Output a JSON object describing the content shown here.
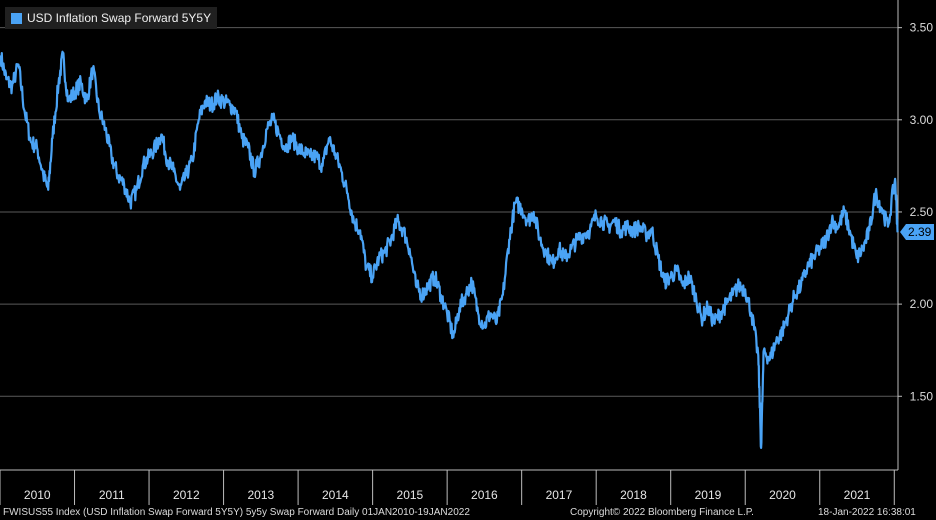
{
  "legend": {
    "label": "USD Inflation Swap Forward 5Y5Y",
    "color": "#4aa3f5"
  },
  "last_value_label": "2.39",
  "footer": {
    "left": "FWISUS55 Index (USD Inflation Swap Forward 5Y5Y) 5y5y Swap Forward  Daily 01JAN2010-19JAN2022",
    "center": "Copyright© 2022 Bloomberg Finance L.P.",
    "right": "18-Jan-2022 16:38:01"
  },
  "chart_data": {
    "type": "line",
    "title": "",
    "xlabel": "",
    "ylabel": "",
    "ylim": [
      1.1,
      3.65
    ],
    "xlim": [
      2010.0,
      2022.05
    ],
    "y_ticks": [
      1.5,
      2.0,
      2.5,
      3.0,
      3.5
    ],
    "y_tick_labels": [
      "1.50",
      "2.00",
      "2.50",
      "3.00",
      "3.50"
    ],
    "x_tick_labels": [
      "2010",
      "2011",
      "2012",
      "2013",
      "2014",
      "2015",
      "2016",
      "2017",
      "2018",
      "2019",
      "2020",
      "2021"
    ],
    "grid": "horizontal",
    "legend_position": "top-left",
    "series": [
      {
        "name": "USD Inflation Swap Forward 5Y5Y",
        "color": "#4aa3f5",
        "points": [
          [
            "2010-01-04",
            3.35
          ],
          [
            "2010-02-01",
            3.22
          ],
          [
            "2010-03-01",
            3.18
          ],
          [
            "2010-04-01",
            3.3
          ],
          [
            "2010-05-01",
            3.05
          ],
          [
            "2010-06-01",
            2.88
          ],
          [
            "2010-07-01",
            2.85
          ],
          [
            "2010-08-01",
            2.7
          ],
          [
            "2010-08-25",
            2.62
          ],
          [
            "2010-09-15",
            2.9
          ],
          [
            "2010-10-15",
            3.2
          ],
          [
            "2010-11-05",
            3.35
          ],
          [
            "2010-12-01",
            3.1
          ],
          [
            "2011-01-01",
            3.15
          ],
          [
            "2011-02-01",
            3.2
          ],
          [
            "2011-03-01",
            3.1
          ],
          [
            "2011-04-01",
            3.28
          ],
          [
            "2011-05-01",
            3.05
          ],
          [
            "2011-06-01",
            2.95
          ],
          [
            "2011-07-01",
            2.8
          ],
          [
            "2011-08-01",
            2.7
          ],
          [
            "2011-09-01",
            2.65
          ],
          [
            "2011-10-01",
            2.55
          ],
          [
            "2011-11-01",
            2.62
          ],
          [
            "2011-12-01",
            2.75
          ],
          [
            "2012-01-01",
            2.8
          ],
          [
            "2012-02-01",
            2.85
          ],
          [
            "2012-03-01",
            2.92
          ],
          [
            "2012-04-01",
            2.78
          ],
          [
            "2012-05-01",
            2.72
          ],
          [
            "2012-06-01",
            2.62
          ],
          [
            "2012-07-01",
            2.7
          ],
          [
            "2012-08-01",
            2.78
          ],
          [
            "2012-09-01",
            3.0
          ],
          [
            "2012-10-01",
            3.1
          ],
          [
            "2012-11-01",
            3.08
          ],
          [
            "2012-12-01",
            3.12
          ],
          [
            "2013-01-01",
            3.1
          ],
          [
            "2013-02-01",
            3.08
          ],
          [
            "2013-03-01",
            3.05
          ],
          [
            "2013-04-01",
            2.9
          ],
          [
            "2013-05-01",
            2.85
          ],
          [
            "2013-06-01",
            2.72
          ],
          [
            "2013-07-01",
            2.8
          ],
          [
            "2013-08-01",
            2.95
          ],
          [
            "2013-09-01",
            3.0
          ],
          [
            "2013-10-01",
            2.92
          ],
          [
            "2013-11-01",
            2.85
          ],
          [
            "2013-12-01",
            2.9
          ],
          [
            "2014-01-01",
            2.85
          ],
          [
            "2014-02-01",
            2.82
          ],
          [
            "2014-03-01",
            2.8
          ],
          [
            "2014-04-01",
            2.8
          ],
          [
            "2014-05-01",
            2.75
          ],
          [
            "2014-06-01",
            2.9
          ],
          [
            "2014-07-01",
            2.82
          ],
          [
            "2014-08-01",
            2.72
          ],
          [
            "2014-09-01",
            2.6
          ],
          [
            "2014-10-01",
            2.45
          ],
          [
            "2014-11-01",
            2.4
          ],
          [
            "2014-12-01",
            2.2
          ],
          [
            "2015-01-01",
            2.15
          ],
          [
            "2015-02-01",
            2.25
          ],
          [
            "2015-03-01",
            2.28
          ],
          [
            "2015-04-01",
            2.35
          ],
          [
            "2015-05-01",
            2.45
          ],
          [
            "2015-06-01",
            2.4
          ],
          [
            "2015-07-01",
            2.3
          ],
          [
            "2015-08-01",
            2.1
          ],
          [
            "2015-09-01",
            2.05
          ],
          [
            "2015-10-01",
            2.1
          ],
          [
            "2015-11-01",
            2.15
          ],
          [
            "2015-12-01",
            2.05
          ],
          [
            "2016-01-01",
            1.95
          ],
          [
            "2016-02-01",
            1.82
          ],
          [
            "2016-03-01",
            1.98
          ],
          [
            "2016-04-01",
            2.05
          ],
          [
            "2016-05-01",
            2.12
          ],
          [
            "2016-06-01",
            1.95
          ],
          [
            "2016-07-01",
            1.88
          ],
          [
            "2016-08-01",
            1.95
          ],
          [
            "2016-09-01",
            1.9
          ],
          [
            "2016-10-01",
            2.05
          ],
          [
            "2016-11-01",
            2.35
          ],
          [
            "2016-12-01",
            2.55
          ],
          [
            "2017-01-01",
            2.52
          ],
          [
            "2017-02-01",
            2.45
          ],
          [
            "2017-03-01",
            2.5
          ],
          [
            "2017-04-01",
            2.35
          ],
          [
            "2017-05-01",
            2.28
          ],
          [
            "2017-06-01",
            2.22
          ],
          [
            "2017-07-01",
            2.3
          ],
          [
            "2017-08-01",
            2.25
          ],
          [
            "2017-09-01",
            2.3
          ],
          [
            "2017-10-01",
            2.35
          ],
          [
            "2017-11-01",
            2.38
          ],
          [
            "2017-12-01",
            2.4
          ],
          [
            "2018-01-01",
            2.48
          ],
          [
            "2018-02-01",
            2.45
          ],
          [
            "2018-03-01",
            2.42
          ],
          [
            "2018-04-01",
            2.45
          ],
          [
            "2018-05-01",
            2.4
          ],
          [
            "2018-06-01",
            2.42
          ],
          [
            "2018-07-01",
            2.4
          ],
          [
            "2018-08-01",
            2.42
          ],
          [
            "2018-09-01",
            2.38
          ],
          [
            "2018-10-01",
            2.4
          ],
          [
            "2018-11-01",
            2.25
          ],
          [
            "2018-12-01",
            2.12
          ],
          [
            "2019-01-01",
            2.15
          ],
          [
            "2019-02-01",
            2.18
          ],
          [
            "2019-03-01",
            2.1
          ],
          [
            "2019-04-01",
            2.15
          ],
          [
            "2019-05-01",
            2.05
          ],
          [
            "2019-06-01",
            1.92
          ],
          [
            "2019-07-01",
            1.98
          ],
          [
            "2019-08-01",
            1.9
          ],
          [
            "2019-09-01",
            1.95
          ],
          [
            "2019-10-01",
            2.0
          ],
          [
            "2019-11-01",
            2.05
          ],
          [
            "2019-12-01",
            2.1
          ],
          [
            "2020-01-01",
            2.08
          ],
          [
            "2020-02-01",
            1.95
          ],
          [
            "2020-03-05",
            1.72
          ],
          [
            "2020-03-19",
            1.22
          ],
          [
            "2020-04-01",
            1.75
          ],
          [
            "2020-05-01",
            1.7
          ],
          [
            "2020-06-01",
            1.8
          ],
          [
            "2020-07-01",
            1.85
          ],
          [
            "2020-08-01",
            1.95
          ],
          [
            "2020-09-01",
            2.05
          ],
          [
            "2020-10-01",
            2.1
          ],
          [
            "2020-11-01",
            2.2
          ],
          [
            "2020-12-01",
            2.25
          ],
          [
            "2021-01-01",
            2.3
          ],
          [
            "2021-02-01",
            2.35
          ],
          [
            "2021-03-01",
            2.45
          ],
          [
            "2021-04-01",
            2.42
          ],
          [
            "2021-05-01",
            2.5
          ],
          [
            "2021-06-01",
            2.38
          ],
          [
            "2021-07-01",
            2.25
          ],
          [
            "2021-08-01",
            2.3
          ],
          [
            "2021-09-01",
            2.4
          ],
          [
            "2021-10-01",
            2.6
          ],
          [
            "2021-11-01",
            2.52
          ],
          [
            "2021-12-01",
            2.42
          ],
          [
            "2022-01-05",
            2.68
          ],
          [
            "2022-01-18",
            2.39
          ]
        ]
      }
    ]
  }
}
